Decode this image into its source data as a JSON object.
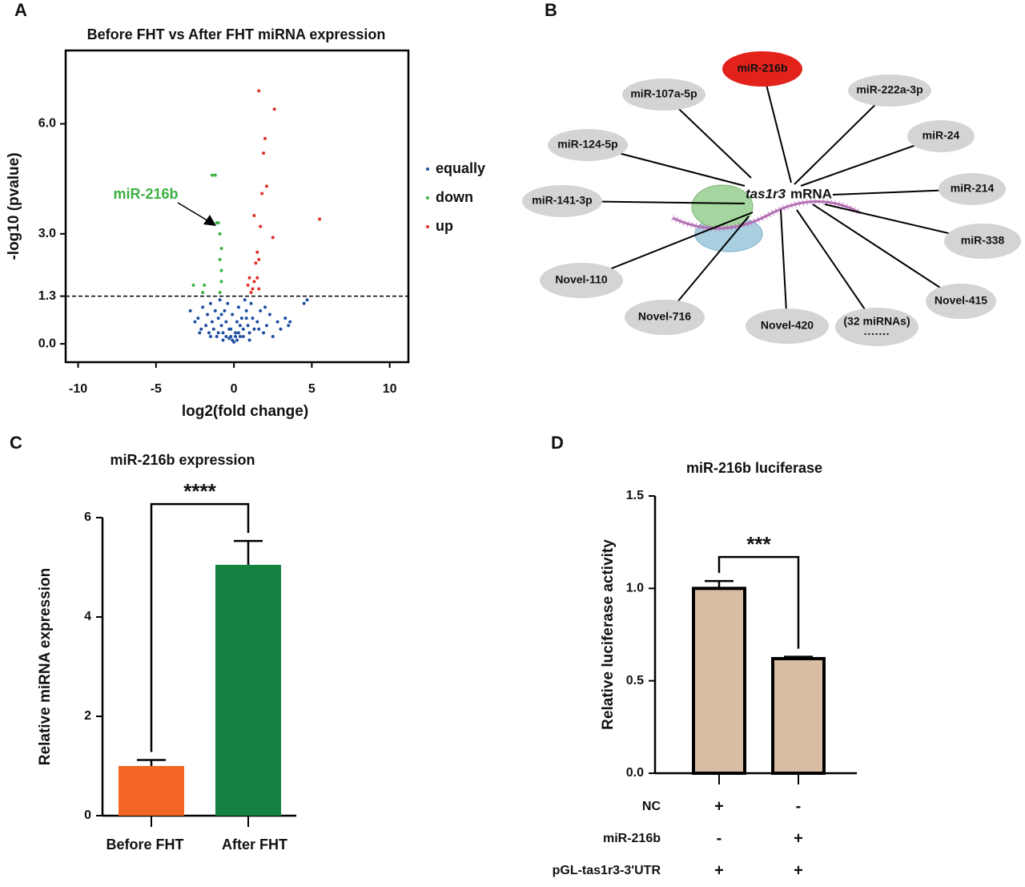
{
  "chart_data": [
    {
      "panel": "A",
      "type": "scatter",
      "title": "Before FHT vs After FHT miRNA expression",
      "xlabel": "log2(fold change)",
      "ylabel": "-log10 (pvalue)",
      "xlim": [
        -10.8,
        11.2
      ],
      "ylim": [
        -0.5,
        8
      ],
      "xticks": [
        -10,
        -5,
        0,
        5,
        10
      ],
      "yticks": [
        {
          "value": 0,
          "label": "0.0"
        },
        {
          "value": 1.3,
          "label": "1.3"
        },
        {
          "value": 3,
          "label": "3.0"
        },
        {
          "value": 6,
          "label": "6.0"
        }
      ],
      "threshold": 1.3,
      "annotation": "miR-216b",
      "legend": "right",
      "series": [
        {
          "name": "equally",
          "color": "#1f4fa0",
          "x": [
            -2.8,
            -2.5,
            -2.3,
            -2.1,
            -2.0,
            -1.8,
            -1.7,
            -1.6,
            -1.5,
            -1.4,
            -1.3,
            -1.2,
            -1.1,
            -1.0,
            -0.9,
            -0.8,
            -0.7,
            -0.6,
            -0.5,
            -0.4,
            -0.3,
            -0.2,
            -0.1,
            0.0,
            0.1,
            0.2,
            0.3,
            0.4,
            0.5,
            0.6,
            0.7,
            0.8,
            0.9,
            1.0,
            1.1,
            1.2,
            1.3,
            1.5,
            1.7,
            1.9,
            2.1,
            2.3,
            2.5,
            2.8,
            3.0,
            3.3,
            3.5,
            4.5,
            4.7,
            -0.5,
            -0.2,
            0.2,
            0.4,
            -0.7,
            0.6,
            -1.0,
            1.0,
            -1.5,
            1.6,
            -0.3,
            0.1,
            -0.1,
            0.3,
            2.0,
            -2.2,
            3.6,
            -0.8,
            0.8
          ],
          "values": [
            0.9,
            0.6,
            0.7,
            0.4,
            1.0,
            0.5,
            0.8,
            0.3,
            1.1,
            0.6,
            0.4,
            0.9,
            0.2,
            0.7,
            1.2,
            0.5,
            0.3,
            0.9,
            0.6,
            1.1,
            0.4,
            0.2,
            0.8,
            0.05,
            0.3,
            0.6,
            1.0,
            0.2,
            0.7,
            0.4,
            1.2,
            0.9,
            0.5,
            0.3,
            1.1,
            0.7,
            0.4,
            0.6,
            0.9,
            0.3,
            0.5,
            0.8,
            0.2,
            0.6,
            0.4,
            0.7,
            0.5,
            1.1,
            1.2,
            0.2,
            0.4,
            0.1,
            0.5,
            0.1,
            0.2,
            0.3,
            0.1,
            0.2,
            0.4,
            0.15,
            0.2,
            0.1,
            0.3,
            1.0,
            0.3,
            0.6,
            0.8,
            0.7
          ]
        },
        {
          "name": "down",
          "color": "#3cb043",
          "x": [
            -1.4,
            -1.2,
            -1.0,
            -1.1,
            -0.9,
            -0.8,
            -0.9,
            -0.8,
            -0.8,
            -1.9,
            -2.6,
            -0.9,
            -2.0
          ],
          "values": [
            4.6,
            4.6,
            3.3,
            3.3,
            3.0,
            2.6,
            2.3,
            2.0,
            1.7,
            1.6,
            1.6,
            1.4,
            1.4
          ]
        },
        {
          "name": "up",
          "color": "#e0302a",
          "x": [
            1.6,
            2.6,
            2.0,
            1.9,
            2.1,
            1.8,
            5.5,
            1.3,
            1.7,
            2.5,
            1.5,
            1.6,
            1.4,
            1.0,
            1.3,
            1.5,
            1.2,
            0.9,
            1.6,
            1.1
          ],
          "values": [
            6.9,
            6.4,
            5.6,
            5.2,
            4.3,
            4.1,
            3.4,
            3.5,
            3.2,
            2.9,
            2.5,
            2.3,
            2.2,
            1.8,
            1.7,
            1.8,
            1.5,
            1.6,
            1.5,
            1.4
          ]
        }
      ]
    },
    {
      "panel": "C",
      "type": "bar",
      "title": "miR-216b expression",
      "ylabel": "Relative  miRNA  expression",
      "categories": [
        "Before FHT",
        "After FHT"
      ],
      "values": [
        1.0,
        5.05
      ],
      "errors": [
        0.12,
        0.48
      ],
      "colors": [
        "#f26522",
        "#148241"
      ],
      "ylim": [
        0,
        6
      ],
      "yticks": [
        0,
        2,
        4,
        6
      ],
      "significance": "****"
    },
    {
      "panel": "D",
      "type": "bar",
      "title": "miR-216b luciferase",
      "ylabel": "Relative luciferase activity",
      "values": [
        1.0,
        0.62
      ],
      "errors": [
        0.04,
        0.01
      ],
      "colors": [
        "#d8bca4",
        "#d8bca4"
      ],
      "ylim": [
        0,
        1.5
      ],
      "yticks": [
        {
          "value": 0,
          "label": "0.0"
        },
        {
          "value": 0.5,
          "label": "0.5"
        },
        {
          "value": 1,
          "label": "1.0"
        },
        {
          "value": 1.5,
          "label": "1.5"
        }
      ],
      "significance": "***",
      "conditions": [
        {
          "label": "NC",
          "signs": [
            "+",
            "-"
          ]
        },
        {
          "label": "miR-216b",
          "signs": [
            "-",
            "+"
          ]
        },
        {
          "label": "pGL-tas1r3-3'UTR",
          "signs": [
            "+",
            "+"
          ]
        }
      ]
    }
  ],
  "diagram": {
    "panel": "B",
    "center_gene": "tas1r3",
    "center_label": "mRNA",
    "nodes": [
      {
        "label": "miR-216b",
        "color": "#e3231b"
      },
      {
        "label": "miR-107a-5p",
        "color": "#d4d4d4"
      },
      {
        "label": "miR-222a-3p",
        "color": "#d4d4d4"
      },
      {
        "label": "miR-124-5p",
        "color": "#d4d4d4"
      },
      {
        "label": "miR-24",
        "color": "#d4d4d4"
      },
      {
        "label": "miR-141-3p",
        "color": "#d4d4d4"
      },
      {
        "label": "miR-214",
        "color": "#d4d4d4"
      },
      {
        "label": "miR-338",
        "color": "#d4d4d4"
      },
      {
        "label": "Novel-110",
        "color": "#d4d4d4"
      },
      {
        "label": "Novel-716",
        "color": "#d4d4d4"
      },
      {
        "label": "Novel-420",
        "color": "#d4d4d4"
      },
      {
        "label": "(32 miRNAs)",
        "color": "#d4d4d4",
        "note": "·······"
      },
      {
        "label": "Novel-415",
        "color": "#d4d4d4"
      }
    ]
  }
}
